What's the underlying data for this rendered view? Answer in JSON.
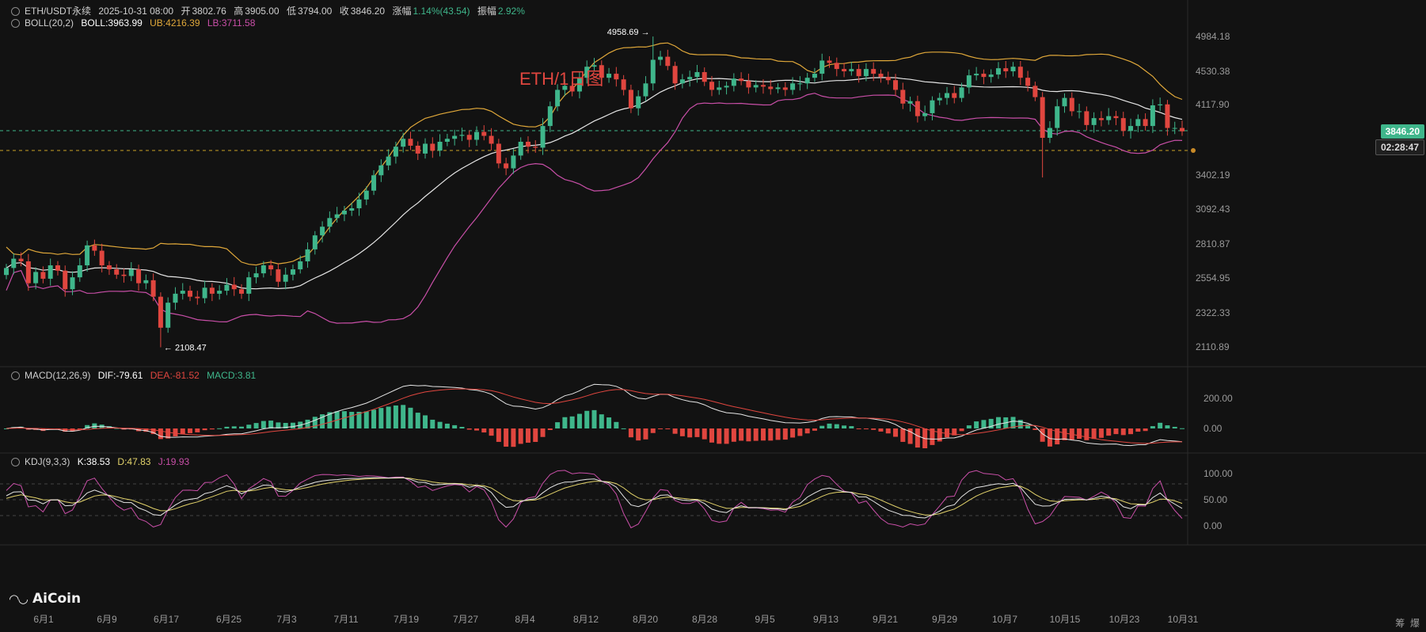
{
  "header": {
    "pair": "ETH/USDT永续",
    "date": "2025-10-31 08:00",
    "open_label": "开",
    "open": "3802.76",
    "high_label": "高",
    "high": "3905.00",
    "low_label": "低",
    "low": "3794.00",
    "close_label": "收",
    "close": "3846.20",
    "change_label": "涨幅",
    "change": "1.14%(43.54)",
    "amp_label": "振幅",
    "amp": "2.92%"
  },
  "boll": {
    "label": "BOLL(20,2)",
    "mid": "BOLL:3963.99",
    "ub": "UB:4216.39",
    "lb": "LB:3711.58"
  },
  "macd": {
    "label": "MACD(12,26,9)",
    "dif": "DIF:-79.61",
    "dea": "DEA:-81.52",
    "macd": "MACD:3.81"
  },
  "kdj": {
    "label": "KDJ(9,3,3)",
    "k": "K:38.53",
    "d": "D:47.83",
    "j": "J:19.93"
  },
  "watermark": "ETH/1日图",
  "logo": "AiCoin",
  "price_tag": "3846.20",
  "countdown_tag": "02:28:47",
  "corner_labels": [
    "筹",
    "爆"
  ],
  "colors": {
    "up": "#3fb68b",
    "down": "#e0463f",
    "mid": "#e6e6e6",
    "ub": "#e0a83a",
    "lb": "#c94fa8",
    "dif": "#e6e6e6",
    "dea": "#e0463f",
    "k": "#e6e6e6",
    "d": "#e3d36b",
    "j": "#c94fa8"
  },
  "chart_data": {
    "type": "candlestick",
    "price_axis_ticks": [
      "4984.18",
      "4530.38",
      "4117.90",
      "3402.19",
      "3092.43",
      "2810.87",
      "2554.95",
      "2322.33",
      "2110.89"
    ],
    "price_axis_values": [
      4984.18,
      4530.38,
      4117.9,
      3402.19,
      3092.43,
      2810.87,
      2554.95,
      2322.33,
      2110.89
    ],
    "macd_axis_ticks": [
      "200.00",
      "0.00"
    ],
    "kdj_axis_ticks": [
      "100.00",
      "50.00",
      "0.00"
    ],
    "x_ticks": [
      "6月1",
      "6月9",
      "6月17",
      "6月25",
      "7月3",
      "7月11",
      "7月19",
      "7月27",
      "8月4",
      "8月12",
      "8月20",
      "8月28",
      "9月5",
      "9月13",
      "9月21",
      "9月29",
      "10月7",
      "10月15",
      "10月23",
      "10月31"
    ],
    "annotations": [
      {
        "label": "4958.69",
        "type": "max"
      },
      {
        "label": "2108.47",
        "type": "min"
      }
    ],
    "close_path": [
      2630,
      2700,
      2680,
      2520,
      2600,
      2550,
      2650,
      2610,
      2480,
      2560,
      2650,
      2800,
      2760,
      2650,
      2620,
      2580,
      2570,
      2620,
      2520,
      2540,
      2430,
      2230,
      2390,
      2450,
      2470,
      2430,
      2420,
      2490,
      2450,
      2470,
      2510,
      2480,
      2450,
      2560,
      2590,
      2650,
      2620,
      2530,
      2580,
      2620,
      2680,
      2770,
      2880,
      2950,
      3020,
      3050,
      3080,
      3100,
      3180,
      3260,
      3400,
      3500,
      3590,
      3690,
      3770,
      3700,
      3620,
      3720,
      3650,
      3740,
      3770,
      3800,
      3810,
      3760,
      3840,
      3800,
      3720,
      3520,
      3470,
      3600,
      3740,
      3690,
      3680,
      3900,
      4100,
      4300,
      4350,
      4280,
      4450,
      4590,
      4610,
      4450,
      4500,
      4430,
      4300,
      4080,
      4220,
      4380,
      4680,
      4720,
      4600,
      4380,
      4430,
      4460,
      4520,
      4400,
      4300,
      4330,
      4350,
      4440,
      4410,
      4330,
      4360,
      4340,
      4310,
      4330,
      4300,
      4380,
      4380,
      4450,
      4500,
      4670,
      4640,
      4560,
      4530,
      4560,
      4470,
      4560,
      4500,
      4460,
      4420,
      4300,
      4130,
      4160,
      4000,
      4030,
      4170,
      4200,
      4260,
      4200,
      4330,
      4480,
      4500,
      4460,
      4490,
      4570,
      4530,
      4590,
      4450,
      4350,
      4210,
      3780,
      3880,
      4100,
      4200,
      4050,
      4050,
      3910,
      3980,
      3960,
      4000,
      3980,
      3850,
      3900,
      3970,
      3900,
      4110,
      4120,
      3880,
      3880,
      3846
    ]
  }
}
